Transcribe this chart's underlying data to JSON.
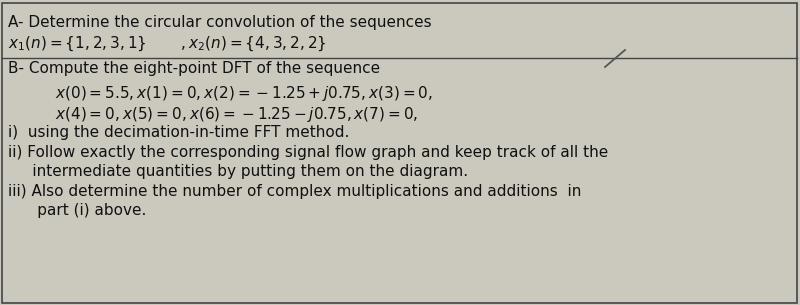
{
  "bg_color": "#cbc8be",
  "border_color": "#444444",
  "text_color": "#111111",
  "figsize": [
    8.0,
    3.05
  ],
  "dpi": 100,
  "line_A1": "A- Determine the circular convolution of the sequences",
  "line_A2_plain": "x",
  "line_B0": "B- Compute the eight-point DFT of the sequence",
  "line_B1": "x(0) = 5.5, x(1) = 0, x(2) = −1.25 + j0.75, x(3) = 0,",
  "line_B2": "x(4) = 0, x(5) = 0, x(6) = −1.25 − j0.75, x(7) = 0,",
  "line_i": "i)  using the decimation-in-time FFT method.",
  "line_ii1": "ii) Follow exactly the corresponding signal flow graph and keep track of all the",
  "line_ii2": "     intermediate quantities by putting them on the diagram.",
  "line_iii1": "iii) Also determine the number of complex multiplications and additions  in",
  "line_iii2": "      part (i) above.",
  "fs": 11.0,
  "fs_math": 11.0
}
